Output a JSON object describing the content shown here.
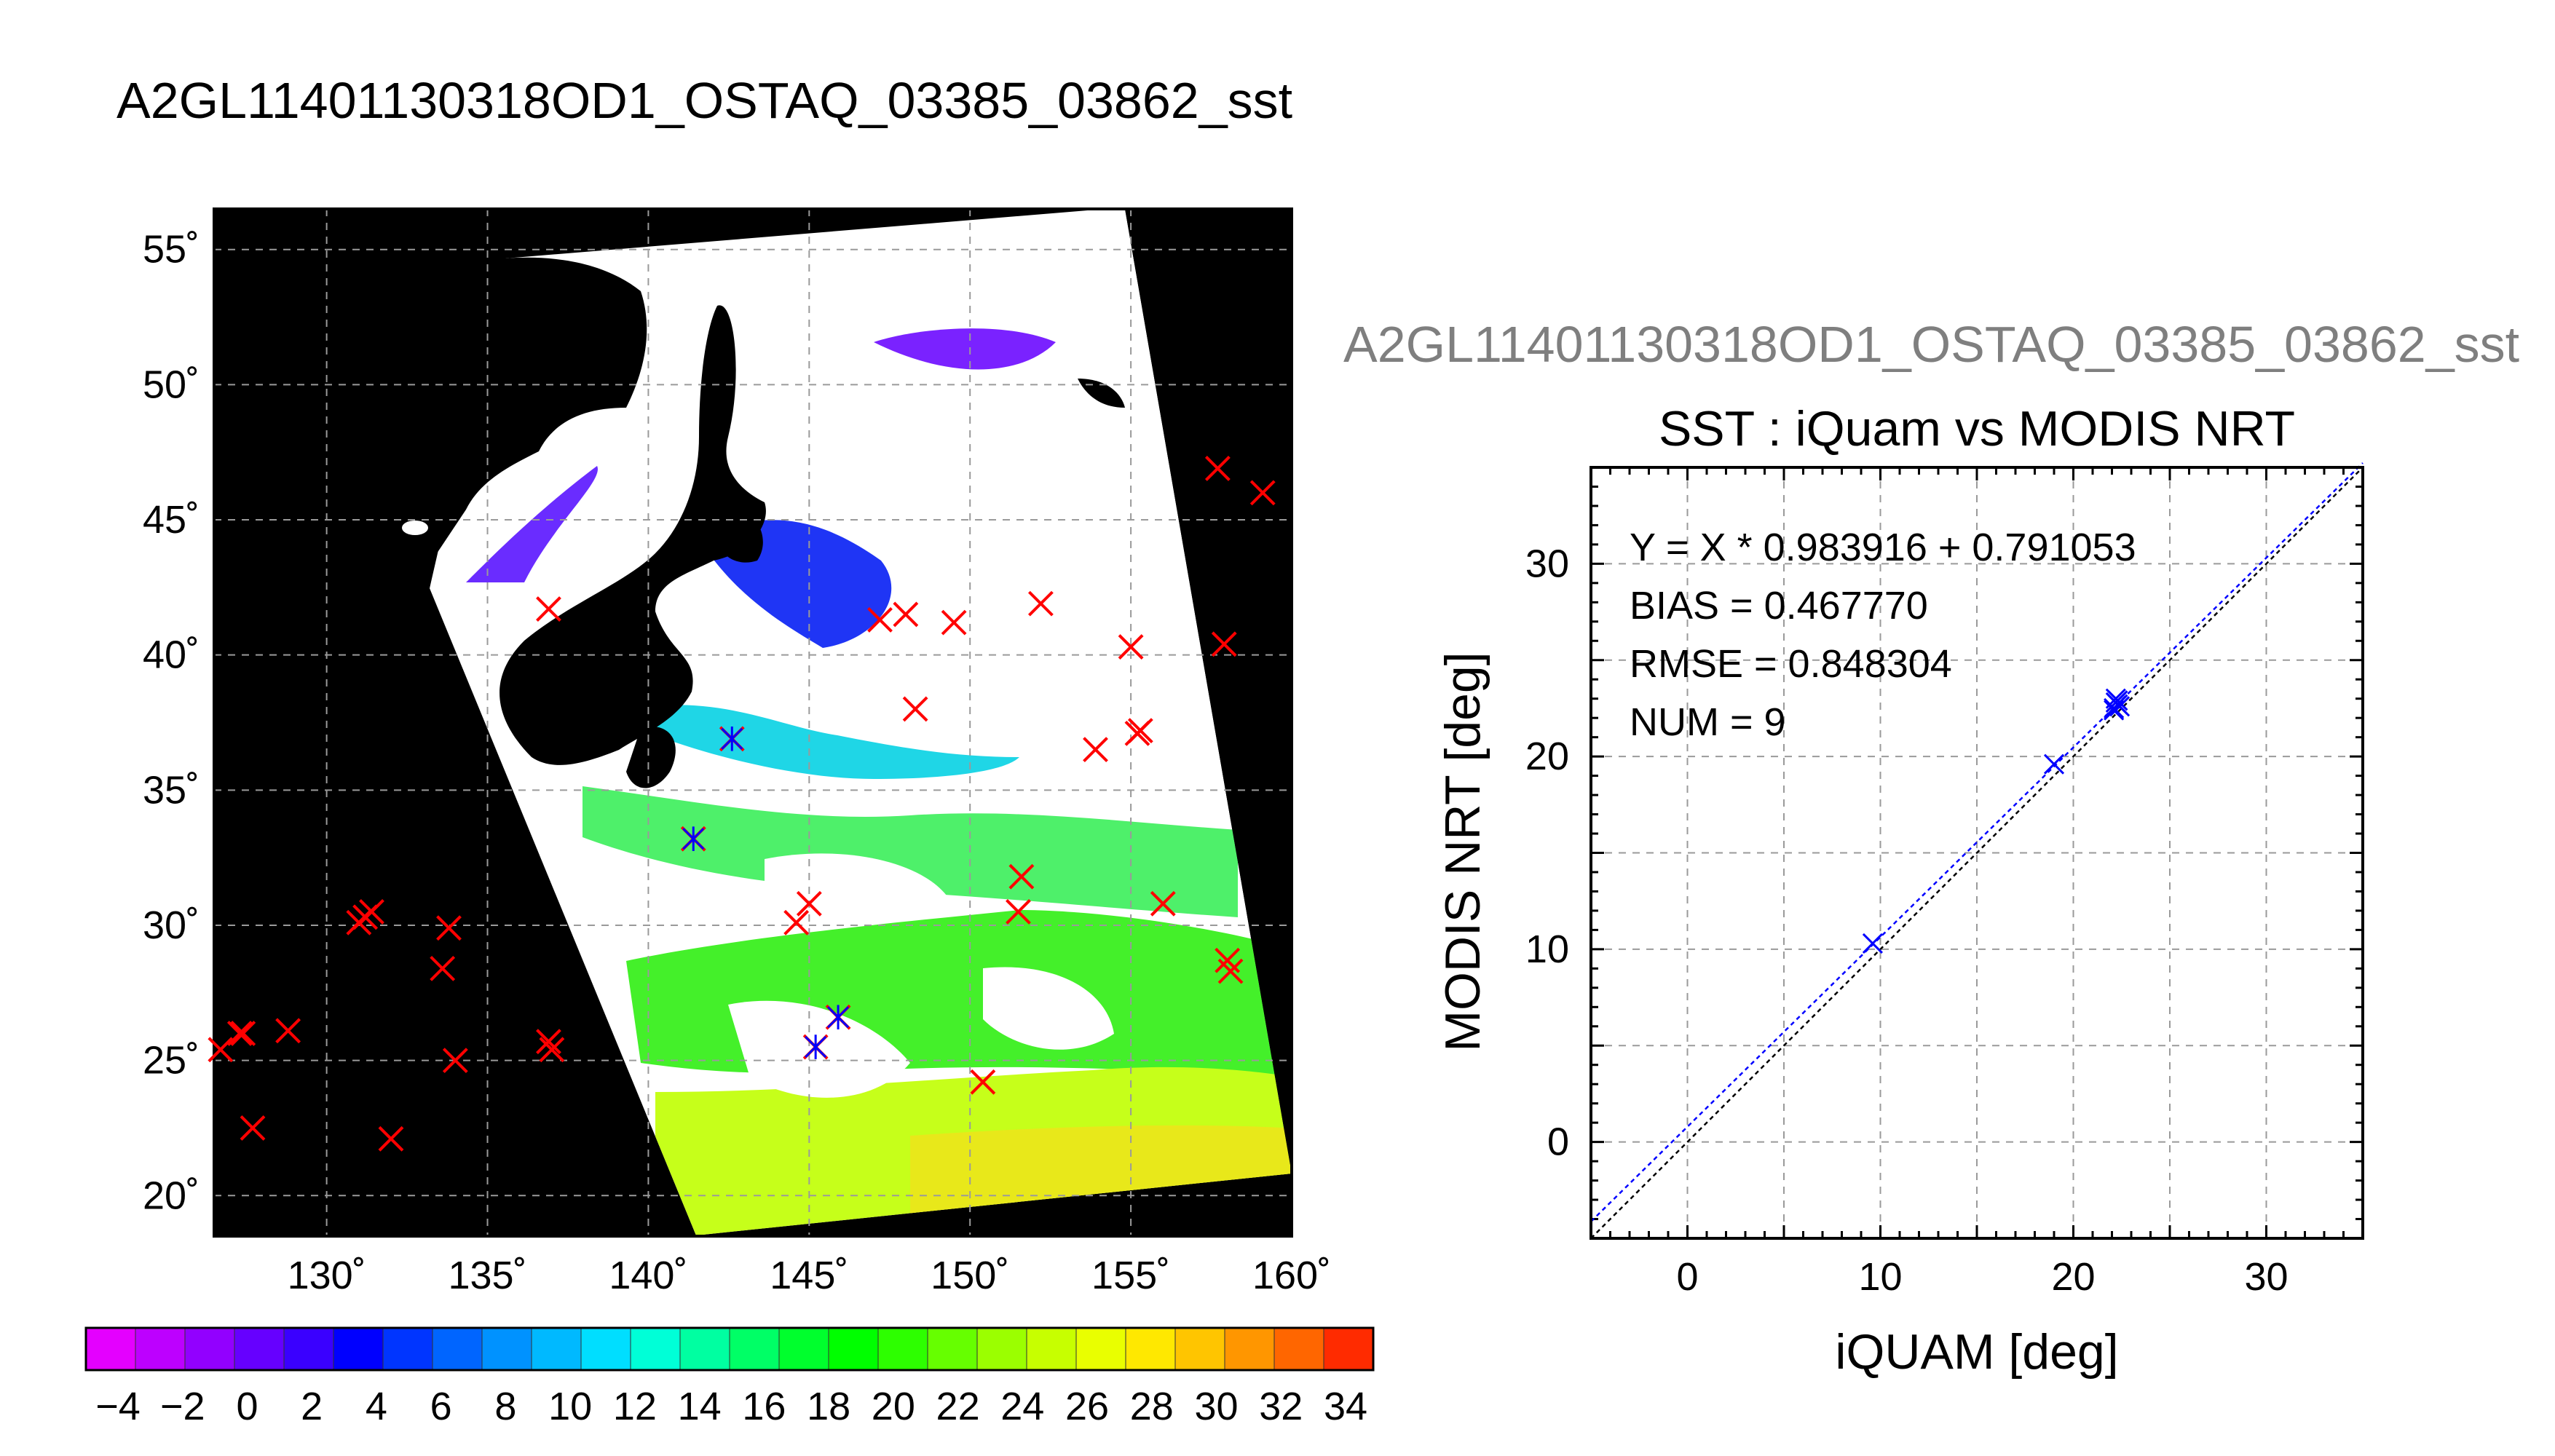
{
  "title": "A2GL11401130318OD1_OSTAQ_03385_03862_sst",
  "scatter_subtitle": "A2GL11401130318OD1_OSTAQ_03385_03862_sst",
  "colors": {
    "buoy_marker": "#ff0000",
    "match_marker": "#0000ff",
    "land": "#000000"
  },
  "map": {
    "lat_ticks": [
      "55˚",
      "50˚",
      "45˚",
      "40˚",
      "35˚",
      "30˚",
      "25˚",
      "20˚"
    ],
    "lon_ticks": [
      "130˚",
      "135˚",
      "140˚",
      "145˚",
      "150˚",
      "155˚",
      "160˚"
    ]
  },
  "colorbar": {
    "tick_labels": [
      "−4",
      "−2",
      "0",
      "2",
      "4",
      "6",
      "8",
      "10",
      "12",
      "14",
      "16",
      "18",
      "20",
      "22",
      "24",
      "26",
      "28",
      "30",
      "32",
      "34"
    ],
    "colors": [
      "#e400ff",
      "#bd00ff",
      "#9200ff",
      "#6600ff",
      "#3a00ff",
      "#0000ff",
      "#0035ff",
      "#0065ff",
      "#0092ff",
      "#00b9ff",
      "#00deff",
      "#00ffd7",
      "#00ffa1",
      "#00ff66",
      "#00ff2d",
      "#00ff00",
      "#2dff00",
      "#66ff00",
      "#9bff00",
      "#c7ff00",
      "#e9ff00",
      "#ffe800",
      "#ffc500",
      "#ff9600",
      "#ff6600",
      "#ff2b00"
    ]
  },
  "chart_data": [
    {
      "type": "scatter",
      "title": "A2GL11401130318OD1_OSTAQ_03385_03862_sst",
      "xlim": [
        126.5,
        160
      ],
      "ylim": [
        18.5,
        56.5
      ],
      "grid": true,
      "series": [
        {
          "x": [
            131.2,
            127.4,
            128.8,
            131.0,
            131.4,
            133.8,
            133.6,
            134.0,
            136.9,
            137.0,
            132.0,
            127.7,
            126.7,
            127.3,
            136.9,
            147.2,
            148.0,
            149.5,
            152.2,
            148.3,
            155.0,
            153.9,
            155.2,
            155.3,
            157.9,
            157.7,
            159.1,
            142.6,
            141.4,
            144.6,
            145.0,
            145.9,
            145.2,
            151.6,
            151.5,
            150.4,
            156.0,
            158.0,
            158.1
          ],
          "y": [
            30.3,
            26.0,
            26.1,
            30.1,
            30.5,
            29.9,
            28.4,
            25.0,
            25.7,
            25.4,
            22.1,
            22.5,
            25.4,
            26.0,
            41.7,
            41.3,
            41.5,
            41.2,
            41.9,
            38.0,
            40.3,
            36.5,
            37.1,
            37.2,
            40.4,
            46.9,
            46.0,
            36.9,
            33.2,
            30.1,
            30.8,
            26.6,
            25.5,
            31.8,
            30.5,
            24.2,
            30.8,
            28.7,
            28.3
          ]
        },
        {
          "x": [
            142.6,
            141.4,
            145.2,
            145.9
          ],
          "y": [
            36.9,
            33.2,
            25.5,
            26.6
          ]
        }
      ]
    },
    {
      "type": "scatter",
      "title": "SST : iQuam vs MODIS NRT",
      "xlabel": "iQUAM [deg]",
      "ylabel": "MODIS NRT [deg]",
      "xlim": [
        -5,
        35
      ],
      "ylim": [
        -5,
        35
      ],
      "grid": true,
      "x_ticks": [
        0,
        10,
        20,
        30
      ],
      "y_ticks": [
        0,
        10,
        20,
        30
      ],
      "annotations": [
        "Y = X * 0.983916 + 0.791053",
        "BIAS = 0.467770",
        "RMSE = 0.848304",
        "NUM = 9"
      ],
      "series": [
        {
          "x": [
            9.6,
            19.0,
            22.1,
            22.2,
            22.3,
            22.2,
            22.4,
            22.1,
            22.3
          ],
          "y": [
            10.3,
            19.6,
            22.5,
            22.8,
            22.7,
            23.0,
            22.6,
            22.4,
            22.9
          ]
        }
      ],
      "lines": [
        {
          "slope": 1.0,
          "intercept": 0.0
        },
        {
          "slope": 0.983916,
          "intercept": 0.791053
        }
      ]
    }
  ]
}
